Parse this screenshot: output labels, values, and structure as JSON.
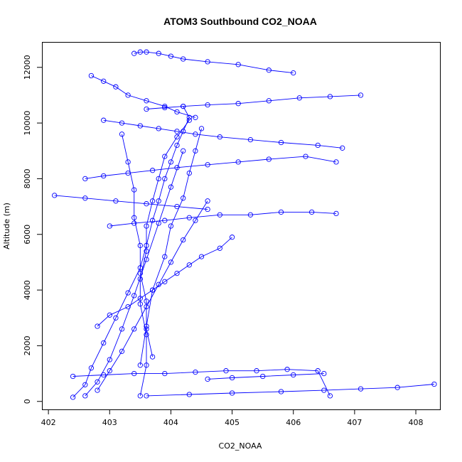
{
  "chart_data": {
    "type": "line",
    "title": "ATOM3 Southbound CO2_NOAA",
    "xlabel": "CO2_NOAA",
    "ylabel": "Altitude (m)",
    "xlim": [
      401.9,
      408.4
    ],
    "ylim": [
      -300,
      12900
    ],
    "xticks": [
      402,
      403,
      404,
      405,
      406,
      407,
      408
    ],
    "yticks": [
      0,
      2000,
      4000,
      6000,
      8000,
      10000,
      12000
    ],
    "marker": "open-circle",
    "color": "#0000ff",
    "grid": false,
    "series": [
      {
        "x": [
          402.4,
          402.6,
          402.7,
          402.9,
          403.1,
          403.3,
          403.5,
          403.6,
          403.7,
          403.8,
          403.9,
          404.0,
          404.1,
          404.2,
          404.3,
          404.2
        ],
        "y": [
          150,
          600,
          1200,
          2100,
          3000,
          3900,
          4800,
          5600,
          6500,
          7200,
          8000,
          8600,
          9200,
          9700,
          10200,
          10600
        ]
      },
      {
        "x": [
          404.3,
          404.1,
          403.9,
          403.8,
          403.7,
          403.6,
          403.6,
          403.5,
          403.5,
          403.6,
          403.6,
          403.5
        ],
        "y": [
          10100,
          9500,
          8800,
          8000,
          7200,
          6300,
          5400,
          4400,
          3500,
          2400,
          1300,
          200
        ]
      },
      {
        "x": [
          402.6,
          402.9,
          403.3,
          403.7,
          404.1,
          404.6,
          405.1,
          405.6,
          406.2,
          406.7
        ],
        "y": [
          8000,
          8100,
          8200,
          8300,
          8400,
          8500,
          8600,
          8700,
          8800,
          8600
        ]
      },
      {
        "x": [
          403.6,
          404.3,
          405.0,
          405.8,
          406.5,
          407.1,
          407.7,
          408.3
        ],
        "y": [
          200,
          250,
          300,
          350,
          400,
          450,
          500,
          620
        ]
      },
      {
        "x": [
          402.6,
          402.8,
          403.0,
          403.2,
          403.4,
          403.6,
          403.8,
          404.0,
          404.2
        ],
        "y": [
          200,
          700,
          1500,
          2600,
          3800,
          5100,
          6400,
          7700,
          9000
        ]
      },
      {
        "x": [
          404.5,
          404.4,
          404.3,
          404.2,
          404.0,
          403.9,
          403.7,
          403.6,
          403.5
        ],
        "y": [
          9800,
          9000,
          8200,
          7300,
          6300,
          5200,
          4000,
          2700,
          1300
        ]
      },
      {
        "x": [
          402.1,
          402.6,
          403.1,
          403.6,
          404.1,
          404.6
        ],
        "y": [
          7400,
          7300,
          7200,
          7100,
          7000,
          6900
        ]
      },
      {
        "x": [
          403.0,
          403.4,
          403.9,
          404.3,
          404.8,
          405.3,
          405.8,
          406.3,
          406.7
        ],
        "y": [
          6300,
          6400,
          6500,
          6600,
          6700,
          6700,
          6800,
          6800,
          6750
        ]
      },
      {
        "x": [
          403.4,
          403.5,
          403.6,
          403.8,
          404.0,
          404.2,
          404.6,
          405.1,
          405.6,
          406.0
        ],
        "y": [
          12500,
          12550,
          12550,
          12500,
          12400,
          12300,
          12200,
          12100,
          11900,
          11800
        ]
      },
      {
        "x": [
          403.6,
          403.9,
          404.2,
          404.6,
          405.1,
          405.6,
          406.1,
          406.6,
          407.1
        ],
        "y": [
          10500,
          10550,
          10600,
          10650,
          10700,
          10800,
          10900,
          10950,
          11000
        ]
      },
      {
        "x": [
          402.9,
          403.2,
          403.5,
          403.8,
          404.1,
          404.4,
          404.8,
          405.3,
          405.8,
          406.4,
          406.8
        ],
        "y": [
          10100,
          10000,
          9900,
          9800,
          9700,
          9600,
          9500,
          9400,
          9300,
          9200,
          9100
        ]
      },
      {
        "x": [
          402.7,
          402.9,
          403.1,
          403.3,
          403.6,
          403.9,
          404.1,
          404.4
        ],
        "y": [
          11700,
          11500,
          11300,
          11000,
          10800,
          10600,
          10400,
          10200
        ]
      },
      {
        "x": [
          403.2,
          403.3,
          403.4,
          403.4,
          403.5,
          403.5,
          403.6,
          403.6,
          403.7
        ],
        "y": [
          9600,
          8600,
          7600,
          6600,
          5600,
          4600,
          3600,
          2600,
          1600
        ]
      },
      {
        "x": [
          404.6,
          404.4,
          404.2,
          404.0,
          403.8,
          403.6,
          403.4,
          403.2,
          403.0,
          402.8
        ],
        "y": [
          7200,
          6500,
          5800,
          5000,
          4200,
          3400,
          2600,
          1800,
          1100,
          400
        ]
      },
      {
        "x": [
          402.8,
          403.0,
          403.3,
          403.5,
          403.7,
          403.9,
          404.1,
          404.3,
          404.5,
          404.8,
          405.0
        ],
        "y": [
          2700,
          3100,
          3400,
          3700,
          4000,
          4300,
          4600,
          4900,
          5200,
          5500,
          5900
        ]
      },
      {
        "x": [
          404.6,
          405.0,
          405.5,
          406.0,
          406.5
        ],
        "y": [
          800,
          850,
          900,
          950,
          1000
        ]
      },
      {
        "x": [
          402.4,
          402.9,
          403.4,
          403.9,
          404.4,
          404.9,
          405.4,
          405.9,
          406.4,
          406.6
        ],
        "y": [
          900,
          950,
          1000,
          1000,
          1050,
          1100,
          1100,
          1150,
          1100,
          200
        ]
      }
    ]
  }
}
